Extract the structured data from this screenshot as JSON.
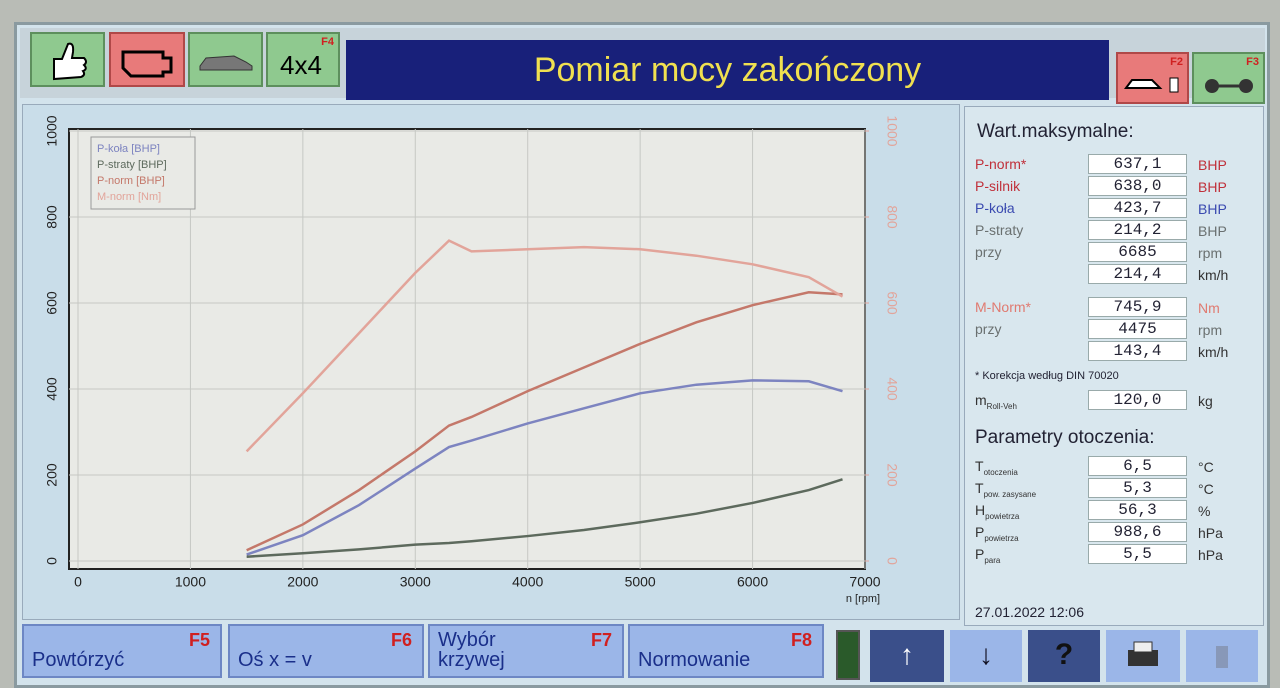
{
  "toolbar": {
    "mode_label": "4x4",
    "mode_key": "F4",
    "title": "Pomiar mocy zakończony",
    "right_keys": [
      "F2",
      "F3"
    ]
  },
  "chart_data": {
    "type": "line",
    "x": [
      1500,
      2000,
      2500,
      3000,
      3300,
      3500,
      4000,
      4500,
      5000,
      5500,
      6000,
      6500,
      6800
    ],
    "series": [
      {
        "name": "P-koła [BHP]",
        "color": "#7d84c0",
        "values": [
          15,
          60,
          130,
          215,
          265,
          280,
          320,
          355,
          390,
          410,
          420,
          418,
          395
        ]
      },
      {
        "name": "P-straty [BHP]",
        "color": "#5d6a5d",
        "values": [
          10,
          18,
          27,
          38,
          42,
          46,
          58,
          72,
          90,
          110,
          135,
          165,
          190
        ]
      },
      {
        "name": "P-norm [BHP]",
        "color": "#c4786a",
        "values": [
          25,
          85,
          165,
          255,
          315,
          335,
          395,
          450,
          505,
          555,
          595,
          625,
          620
        ]
      },
      {
        "name": "M-norm [Nm]",
        "color": "#e2a49a",
        "axis": "y2",
        "values": [
          255,
          390,
          530,
          670,
          745,
          720,
          725,
          730,
          725,
          710,
          690,
          660,
          615
        ]
      }
    ],
    "x_label": "n [rpm]",
    "xlim": [
      0,
      7000
    ],
    "xticks": [
      0,
      1000,
      2000,
      3000,
      4000,
      5000,
      6000,
      7000
    ],
    "ylim": [
      0,
      1000
    ],
    "yticks": [
      0,
      200,
      400,
      600,
      800,
      1000
    ],
    "y2lim": [
      0,
      1000
    ],
    "y2ticks": [
      0,
      200,
      400,
      600,
      800,
      1000
    ],
    "grid": true,
    "legend": "upper left"
  },
  "max_values": {
    "title": "Wart.maksymalne:",
    "rows": [
      {
        "label": "P-norm*",
        "value": "637,1",
        "unit": "BHP",
        "color": "#c0303a"
      },
      {
        "label": "P-silnik",
        "value": "638,0",
        "unit": "BHP",
        "color": "#c0303a"
      },
      {
        "label": "P-koła",
        "value": "423,7",
        "unit": "BHP",
        "color": "#3a4ab0"
      },
      {
        "label": "P-straty",
        "value": "214,2",
        "unit": "BHP",
        "color": "#6a7070"
      },
      {
        "label": "przy",
        "value": "6685",
        "unit": "rpm",
        "color": "#6a7070"
      },
      {
        "value": "214,4",
        "unit": "km/h",
        "color": "#333333"
      }
    ],
    "torque_rows": [
      {
        "label": "M-Norm*",
        "value": "745,9",
        "unit": "Nm",
        "color": "#e07a70"
      },
      {
        "label": "przy",
        "value": "4475",
        "unit": "rpm",
        "color": "#6a7070"
      },
      {
        "value": "143,4",
        "unit": "km/h",
        "color": "#333333"
      }
    ],
    "note": "* Korekcja według DIN 70020",
    "mass": {
      "label": "m",
      "sub": "Roll-Veh",
      "value": "120,0",
      "unit": "kg",
      "color": "#333333"
    }
  },
  "ambient": {
    "title": "Parametry otoczenia:",
    "rows": [
      {
        "label": "T",
        "sub": "otoczenia",
        "value": "6,5",
        "unit": "°C",
        "color": "#333333"
      },
      {
        "label": "T",
        "sub": "pow. zasysane",
        "value": "5,3",
        "unit": "°C",
        "color": "#333333"
      },
      {
        "label": "H",
        "sub": "powietrza",
        "value": "56,3",
        "unit": "%",
        "color": "#333333"
      },
      {
        "label": "P",
        "sub": "powietrza",
        "value": "988,6",
        "unit": "hPa",
        "color": "#333333"
      },
      {
        "label": "P",
        "sub": "para",
        "value": "5,5",
        "unit": "hPa",
        "color": "#333333"
      }
    ]
  },
  "datetime": "27.01.2022 12:06",
  "bottom_buttons": [
    {
      "label": "Powtórzyć",
      "key": "F5"
    },
    {
      "label": "Oś x = v",
      "key": "F6"
    },
    {
      "label": "Wybór krzywej",
      "key": "F7"
    },
    {
      "label": "Normowanie",
      "key": "F8"
    }
  ]
}
